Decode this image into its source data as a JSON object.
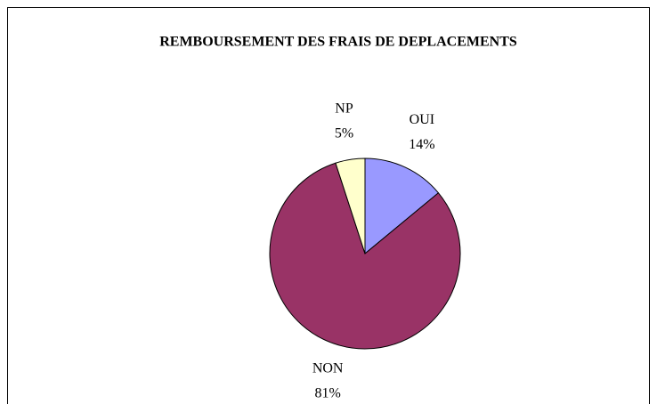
{
  "chart_data": {
    "type": "pie",
    "title": "REMBOURSEMENT DES FRAIS DE DEPLACEMENTS",
    "categories": [
      "OUI",
      "NON",
      "NP"
    ],
    "values": [
      14,
      81,
      5
    ],
    "value_labels": [
      "14%",
      "81%",
      "5%"
    ],
    "colors": [
      "#9999ff",
      "#993366",
      "#ffffcc"
    ]
  }
}
